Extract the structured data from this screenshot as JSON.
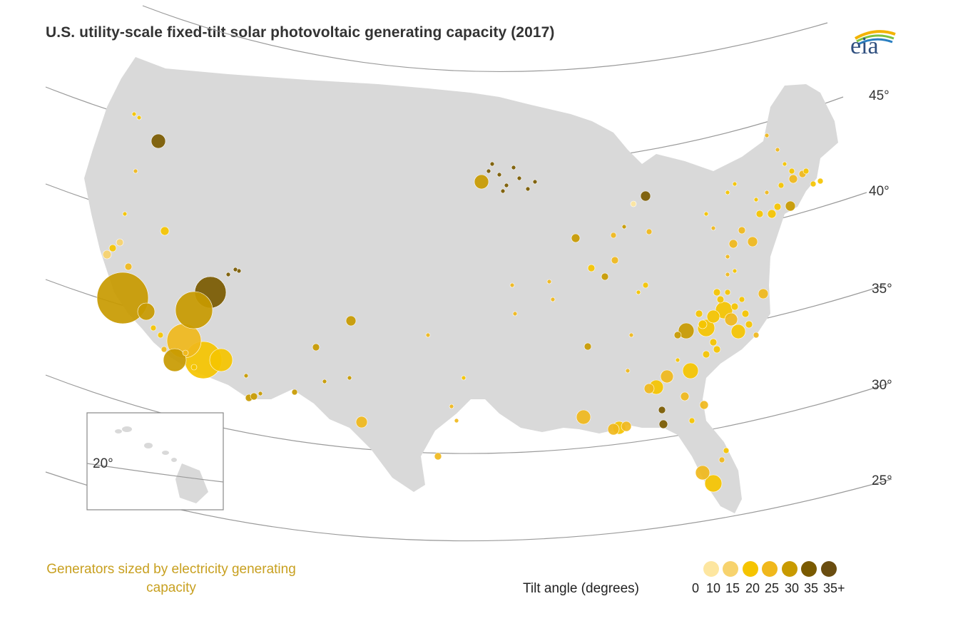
{
  "title": "U.S. utility-scale fixed-tilt solar photovoltaic generating capacity (2017)",
  "logo": {
    "text": "eia",
    "icon": "eia-logo-icon"
  },
  "latitude_labels": [
    "45°",
    "40°",
    "35°",
    "30°",
    "25°",
    "20°"
  ],
  "inset_label": "20°",
  "generator_note": "Generators sized by electricity generating capacity",
  "legend": {
    "title": "Tilt angle (degrees)",
    "items": [
      {
        "label": "0",
        "color": "#fde6a0"
      },
      {
        "label": "10",
        "color": "#f7d36e"
      },
      {
        "label": "15",
        "color": "#f5c400"
      },
      {
        "label": "20",
        "color": "#f0b81c"
      },
      {
        "label": "25",
        "color": "#c89a00"
      },
      {
        "label": "30",
        "color": "#7a5a00"
      },
      {
        "label": "35",
        "color": "#6a4d10"
      },
      {
        "label": "35+",
        "color": ""
      }
    ]
  },
  "colors": {
    "land": "#d9d9d9",
    "border": "#ffffff",
    "graticule": "#9a9a9a"
  }
}
